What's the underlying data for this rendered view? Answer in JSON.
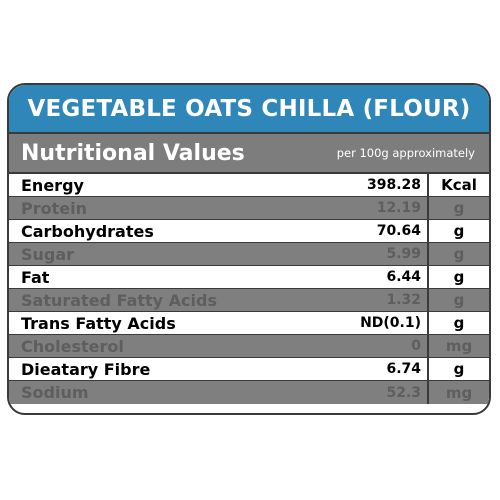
{
  "title": "VEGETABLE OATS CHILLA (FLOUR)",
  "header": {
    "label": "Nutritional Values",
    "basis": "per 100g approximately"
  },
  "nutrients": [
    {
      "name": "Energy",
      "value": "398.28",
      "unit": "Kcal"
    },
    {
      "name": "Protein",
      "value": "12.19",
      "unit": "g"
    },
    {
      "name": "Carbohydrates",
      "value": "70.64",
      "unit": "g"
    },
    {
      "name": "Sugar",
      "value": "5.99",
      "unit": "g"
    },
    {
      "name": "Fat",
      "value": "6.44",
      "unit": "g"
    },
    {
      "name": "Saturated Fatty Acids",
      "value": "1.32",
      "unit": "g"
    },
    {
      "name": "Trans Fatty Acids",
      "value": "ND(0.1)",
      "unit": "g"
    },
    {
      "name": "Cholesterol",
      "value": "0",
      "unit": "mg"
    },
    {
      "name": "Dieatary Fibre",
      "value": "6.74",
      "unit": "g"
    },
    {
      "name": "Sodium",
      "value": "52.3",
      "unit": "mg"
    }
  ],
  "colors": {
    "title_bg": "#2f86b8",
    "header_bg": "#7d7d7d",
    "shaded_row_bg": "#7f7f7f",
    "border": "#3a3a3a"
  }
}
